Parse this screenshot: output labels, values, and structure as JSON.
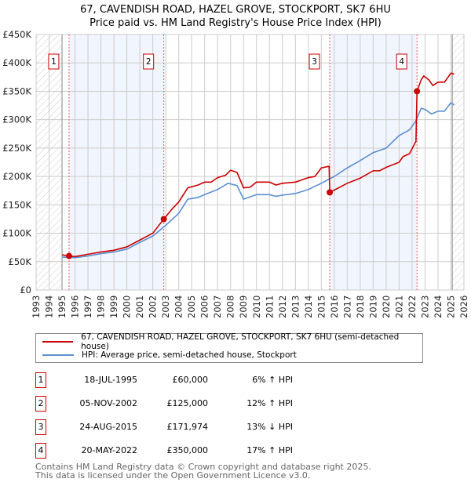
{
  "title": "67, CAVENDISH ROAD, HAZEL GROVE, STOCKPORT, SK7 6HU",
  "subtitle": "Price paid vs. HM Land Registry's House Price Index (HPI)",
  "chart_data": {
    "type": "line",
    "xlim": [
      1993,
      2026
    ],
    "ylim": [
      0,
      450000
    ],
    "yticks": [
      {
        "v": 0,
        "l": "£0"
      },
      {
        "v": 50000,
        "l": "£50K"
      },
      {
        "v": 100000,
        "l": "£100K"
      },
      {
        "v": 150000,
        "l": "£150K"
      },
      {
        "v": 200000,
        "l": "£200K"
      },
      {
        "v": 250000,
        "l": "£250K"
      },
      {
        "v": 300000,
        "l": "£300K"
      },
      {
        "v": 350000,
        "l": "£350K"
      },
      {
        "v": 400000,
        "l": "£400K"
      },
      {
        "v": 450000,
        "l": "£450K"
      }
    ],
    "xticks": [
      "1993",
      "1994",
      "1995",
      "1996",
      "1997",
      "1998",
      "1999",
      "2000",
      "2001",
      "2002",
      "2003",
      "2004",
      "2005",
      "2006",
      "2007",
      "2008",
      "2009",
      "2010",
      "2011",
      "2012",
      "2013",
      "2014",
      "2015",
      "2016",
      "2017",
      "2018",
      "2019",
      "2020",
      "2021",
      "2022",
      "2023",
      "2024",
      "2025",
      "2026"
    ],
    "series": [
      {
        "name": "67, CAVENDISH ROAD, HAZEL GROVE, STOCKPORT, SK7 6HU (semi-detached house)",
        "color": "#cc0000",
        "x": [
          1995.0,
          1995.54,
          1996,
          1997,
          1998,
          1999,
          2000,
          2001,
          2002,
          2002.85,
          2003.5,
          2004,
          2004.7,
          2005.5,
          2006,
          2006.5,
          2007,
          2007.6,
          2008,
          2008.5,
          2009,
          2009.5,
          2010,
          2011,
          2011.5,
          2012,
          2013,
          2014,
          2014.5,
          2015,
          2015.6,
          2015.65,
          2016,
          2017,
          2018,
          2019,
          2019.5,
          2020,
          2021,
          2021.3,
          2021.8,
          2022.3,
          2022.38,
          2022.7,
          2022.9,
          2023.3,
          2023.6,
          2024,
          2024.5,
          2025,
          2025.25
        ],
        "y": [
          62000,
          60000,
          59000,
          63000,
          67000,
          70000,
          76000,
          88000,
          100000,
          125000,
          143000,
          155000,
          180000,
          185000,
          190000,
          190000,
          198000,
          202000,
          211000,
          207000,
          180000,
          181000,
          190000,
          190000,
          185000,
          188000,
          190000,
          198000,
          200000,
          215000,
          218000,
          171974,
          176000,
          188000,
          197000,
          210000,
          210000,
          216000,
          225000,
          235000,
          240000,
          262000,
          350000,
          370000,
          377000,
          370000,
          360000,
          366000,
          366000,
          382000,
          380000
        ]
      },
      {
        "name": "HPI: Average price, semi-detached house, Stockport",
        "color": "#5b8fd1",
        "x": [
          1995,
          1996,
          1997,
          1998,
          1999,
          2000,
          2001,
          2002,
          2003,
          2004,
          2004.7,
          2005.5,
          2006,
          2007,
          2007.8,
          2008.5,
          2009,
          2010,
          2011,
          2011.5,
          2012,
          2013,
          2014,
          2015,
          2016,
          2017,
          2018,
          2019,
          2020,
          2021,
          2021.8,
          2022.3,
          2022.7,
          2023,
          2023.5,
          2024,
          2024.5,
          2025,
          2025.25
        ],
        "y": [
          58000,
          57000,
          60000,
          64000,
          67000,
          72000,
          84000,
          95000,
          114000,
          135000,
          160000,
          163000,
          168000,
          177000,
          188000,
          184000,
          160000,
          168000,
          168000,
          165000,
          167000,
          170000,
          177000,
          188000,
          200000,
          215000,
          228000,
          242000,
          250000,
          272000,
          282000,
          298000,
          320000,
          318000,
          310000,
          315000,
          315000,
          330000,
          326000
        ]
      }
    ],
    "sales": [
      {
        "n": "1",
        "x": 1995.54,
        "date": "18-JUL-1995",
        "price": "£60,000",
        "value": 60000,
        "hpi": "6% ↑ HPI"
      },
      {
        "n": "2",
        "x": 2002.85,
        "date": "05-NOV-2002",
        "price": "£125,000",
        "value": 125000,
        "hpi": "12% ↑ HPI"
      },
      {
        "n": "3",
        "x": 2015.65,
        "date": "24-AUG-2015",
        "price": "£171,974",
        "value": 171974,
        "hpi": "13% ↓ HPI"
      },
      {
        "n": "4",
        "x": 2022.38,
        "date": "20-MAY-2022",
        "price": "£350,000",
        "value": 350000,
        "hpi": "17% ↑ HPI"
      }
    ],
    "data_start": 1995.0,
    "data_end": 2025.1
  },
  "legend": {
    "property": "67, CAVENDISH ROAD, HAZEL GROVE, STOCKPORT, SK7 6HU (semi-detached house)",
    "hpi": "HPI: Average price, semi-detached house, Stockport"
  },
  "footer": {
    "line1": "Contains HM Land Registry data © Crown copyright and database right 2025.",
    "line2": "This data is licensed under the Open Government Licence v3.0."
  }
}
